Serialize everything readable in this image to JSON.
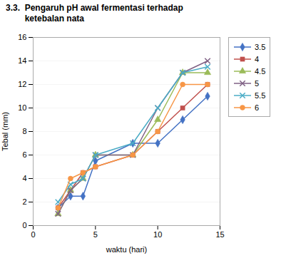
{
  "chart_data": {
    "type": "line",
    "title": "3.3.  Pengaruh pH awal fermentasi terhadap\n        ketebalan nata",
    "x_label": "waktu (hari)",
    "y_label": "Tebal (mm)",
    "x": [
      2,
      3,
      4,
      5,
      8,
      10,
      12,
      14
    ],
    "series": [
      {
        "name": "3.5",
        "color": "#4472C4",
        "marker": "diamond",
        "values": [
          1.5,
          2.5,
          2.5,
          5.5,
          7.0,
          7.0,
          9.0,
          11.0
        ]
      },
      {
        "name": "4",
        "color": "#C0504D",
        "marker": "square",
        "values": [
          1.5,
          3.0,
          4.5,
          5.0,
          6.0,
          8.0,
          10.0,
          12.0
        ]
      },
      {
        "name": "4.5",
        "color": "#9BBB59",
        "marker": "triangle",
        "values": [
          1.0,
          3.0,
          4.0,
          6.0,
          6.0,
          9.0,
          13.0,
          13.0
        ]
      },
      {
        "name": "5",
        "color": "#7F6084",
        "marker": "x",
        "values": [
          1.0,
          3.0,
          4.0,
          6.0,
          6.0,
          10.0,
          13.0,
          14.0
        ]
      },
      {
        "name": "5.5",
        "color": "#4BACC6",
        "marker": "x",
        "values": [
          2.0,
          3.5,
          4.0,
          6.0,
          7.0,
          10.0,
          13.0,
          13.5
        ]
      },
      {
        "name": "6",
        "color": "#F79646",
        "marker": "circle",
        "values": [
          1.5,
          4.0,
          4.5,
          5.0,
          6.0,
          8.0,
          12.0,
          12.0
        ]
      }
    ],
    "xlim": [
      0,
      15
    ],
    "ylim": [
      0,
      16
    ],
    "xticks": [
      0,
      5,
      10,
      15
    ],
    "yticks": [
      0,
      2,
      4,
      6,
      8,
      10,
      12,
      14,
      16
    ],
    "grid": "y",
    "legend": "right"
  }
}
